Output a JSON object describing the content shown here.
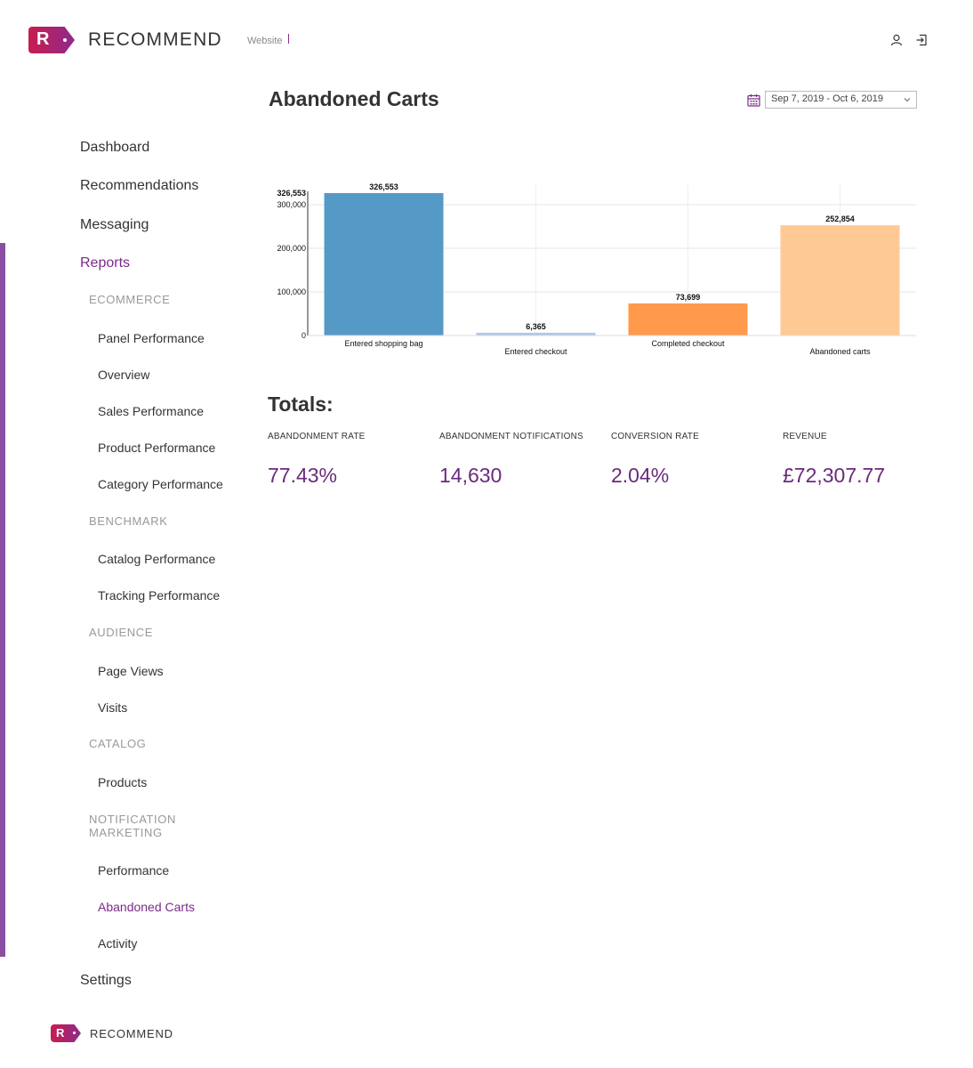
{
  "header": {
    "brand": "RECOMMEND",
    "brand_letter": "R",
    "site_selector": "Website",
    "icons": [
      "user-icon",
      "logout-icon"
    ]
  },
  "sidebar": {
    "top_items": [
      {
        "label": "Dashboard"
      },
      {
        "label": "Recommendations"
      },
      {
        "label": "Messaging"
      },
      {
        "label": "Reports",
        "active": true
      }
    ],
    "sections": {
      "ecommerce": {
        "title": "ECOMMERCE",
        "items": [
          "Panel Performance",
          "Overview",
          "Sales Performance",
          "Product Performance",
          "Category Performance"
        ]
      },
      "benchmark": {
        "title": "BENCHMARK",
        "items": [
          "Catalog Performance",
          "Tracking Performance"
        ]
      },
      "audience": {
        "title": "AUDIENCE",
        "items": [
          "Page Views",
          "Visits"
        ]
      },
      "catalog": {
        "title": "CATALOG",
        "items": [
          "Products"
        ]
      },
      "notification": {
        "title": "NOTIFICATION MARKETING",
        "items": [
          "Performance",
          "Abandoned Carts",
          "Activity"
        ]
      }
    },
    "bottom_item": "Settings"
  },
  "main": {
    "title": "Abandoned Carts",
    "date_range": "Sep 7, 2019 - Oct 6, 2019",
    "totals_title": "Totals:",
    "metrics": [
      {
        "label": "ABANDONMENT RATE",
        "value": "77.43%"
      },
      {
        "label": "ABANDONMENT NOTIFICATIONS",
        "value": "14,630"
      },
      {
        "label": "CONVERSION RATE",
        "value": "2.04%"
      },
      {
        "label": "REVENUE",
        "value": "£72,307.77"
      }
    ]
  },
  "footer": {
    "brand": "RECOMMEND",
    "brand_letter": "R"
  },
  "colors": {
    "accent": "#7b2a8a",
    "sidebar_bar": "#8a4fa0",
    "bar_colors": [
      "#5599c7",
      "#aec7e8",
      "#ff9a4d",
      "#ffc996"
    ]
  },
  "chart_data": {
    "type": "bar",
    "categories": [
      "Entered shopping bag",
      "Entered checkout",
      "Completed checkout",
      "Abandoned carts"
    ],
    "values": [
      326553,
      6365,
      73699,
      252854
    ],
    "value_labels": [
      "326,553",
      "6,365",
      "73,699",
      "252,854"
    ],
    "y_ticks": [
      "0",
      "100,000",
      "200,000",
      "300,000",
      "326,553"
    ],
    "y_tick_values": [
      0,
      100000,
      200000,
      300000,
      326553
    ],
    "ylim": [
      0,
      326553
    ],
    "grid": true
  }
}
